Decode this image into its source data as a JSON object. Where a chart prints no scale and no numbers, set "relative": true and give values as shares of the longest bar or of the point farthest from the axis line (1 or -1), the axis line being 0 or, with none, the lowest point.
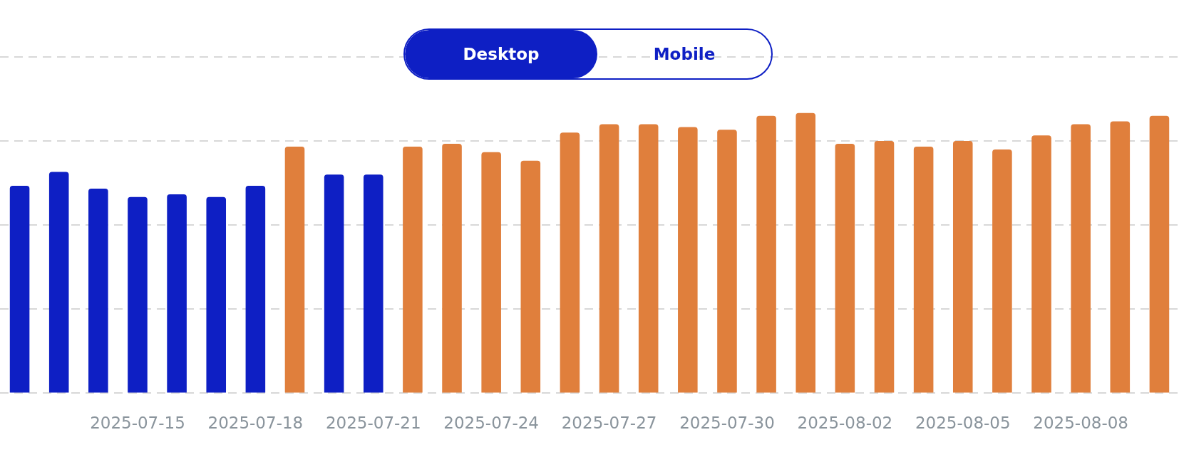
{
  "chart_data": {
    "type": "bar",
    "relative": true,
    "grid": "y",
    "categories": [
      null,
      null,
      null,
      "2025-07-15",
      null,
      null,
      "2025-07-18",
      null,
      null,
      "2025-07-21",
      null,
      null,
      "2025-07-24",
      null,
      null,
      "2025-07-27",
      null,
      null,
      "2025-07-30",
      null,
      null,
      "2025-08-02",
      null,
      null,
      "2025-08-05",
      null,
      null,
      "2025-08-08",
      null,
      null
    ],
    "values": [
      0.74,
      0.79,
      0.73,
      0.7,
      0.71,
      0.7,
      0.74,
      0.88,
      0.78,
      0.78,
      0.88,
      0.89,
      0.86,
      0.83,
      0.93,
      0.96,
      0.96,
      0.95,
      0.94,
      0.99,
      1,
      0.89,
      0.9,
      0.88,
      0.9,
      0.87,
      0.92,
      0.96,
      0.97,
      0.99
    ],
    "colors": [
      "#0e1fc4",
      "#0e1fc4",
      "#0e1fc4",
      "#0e1fc4",
      "#0e1fc4",
      "#0e1fc4",
      "#0e1fc4",
      "#e07f3c",
      "#0e1fc4",
      "#0e1fc4",
      "#e07f3c",
      "#e07f3c",
      "#e07f3c",
      "#e07f3c",
      "#e07f3c",
      "#e07f3c",
      "#e07f3c",
      "#e07f3c",
      "#e07f3c",
      "#e07f3c",
      "#e07f3c",
      "#e07f3c",
      "#e07f3c",
      "#e07f3c",
      "#e07f3c",
      "#e07f3c",
      "#e07f3c",
      "#e07f3c",
      "#e07f3c",
      "#e07f3c"
    ],
    "annotations": [
      "Desktop",
      "Mobile"
    ]
  }
}
